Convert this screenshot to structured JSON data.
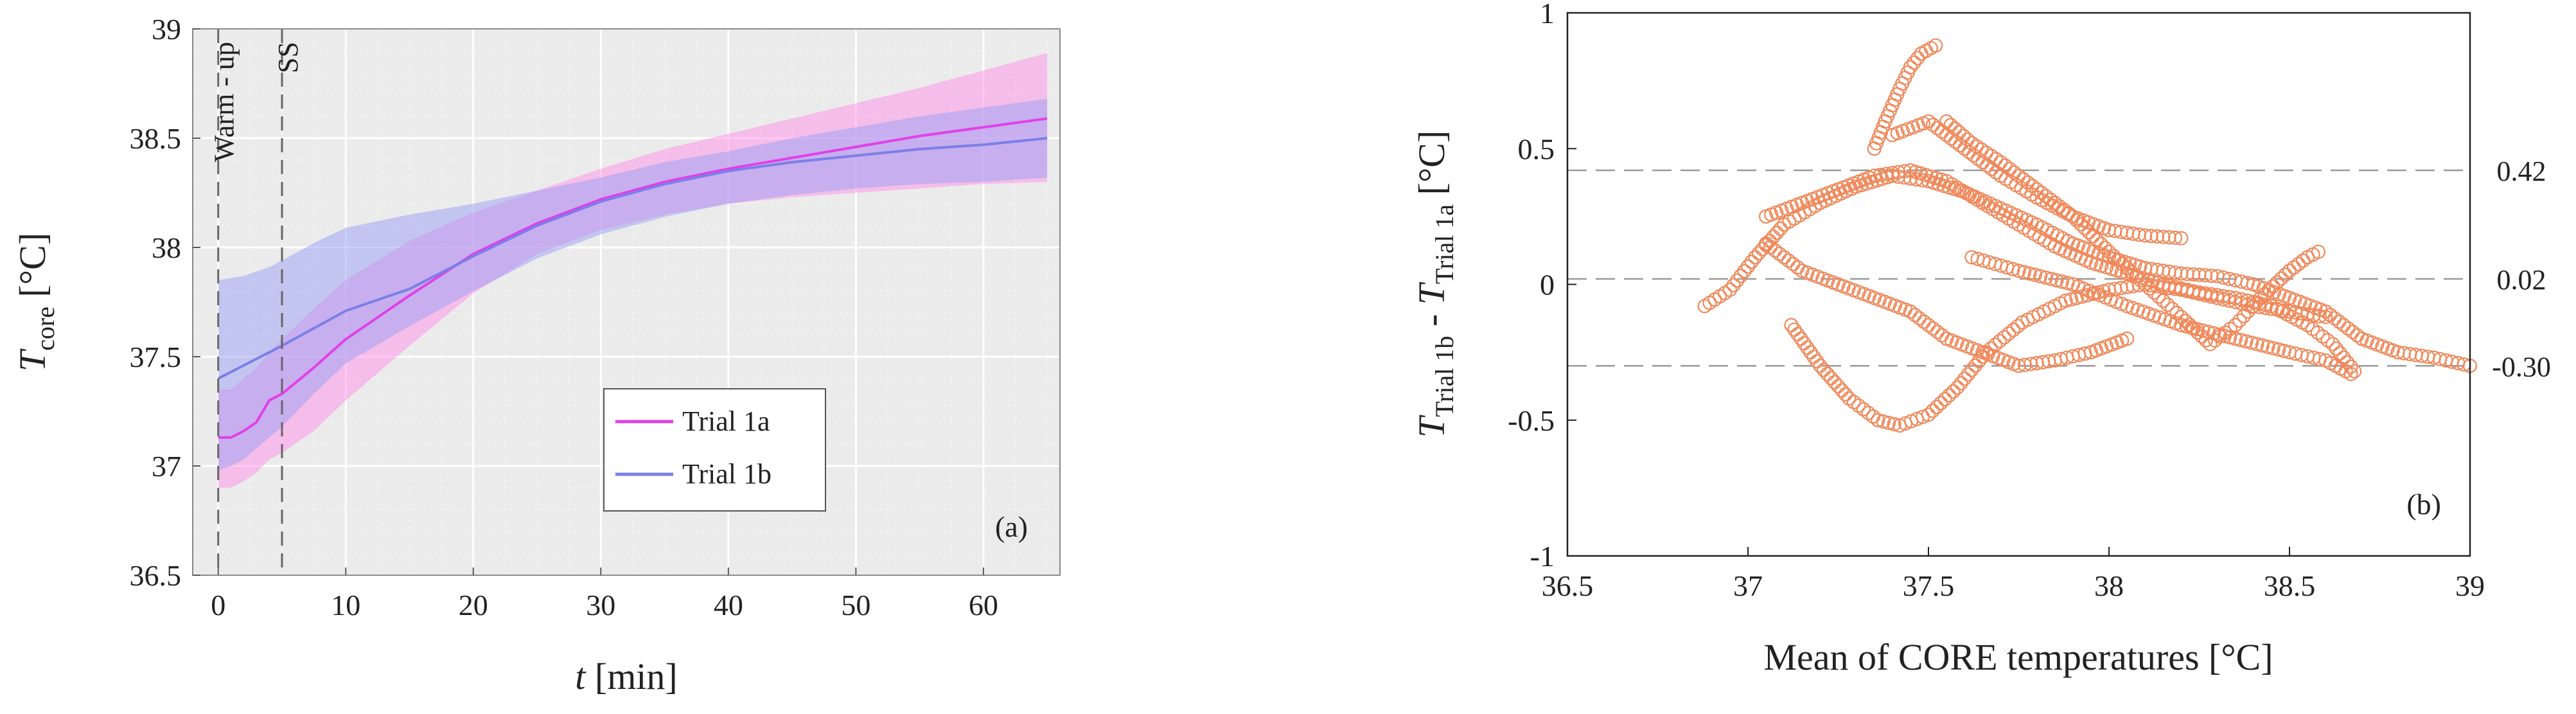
{
  "chart_data": [
    {
      "type": "line",
      "panel_label": "(a)",
      "xlabel": "t [min]",
      "xlabel_var": "t",
      "xlabel_unit": " [min]",
      "ylabel_var": "T",
      "ylabel_sub": "core",
      "ylabel_unit": " [°C]",
      "xlim": [
        -2,
        66
      ],
      "ylim": [
        36.5,
        39
      ],
      "x_ticks": [
        0,
        10,
        20,
        30,
        40,
        50,
        60
      ],
      "y_ticks": [
        36.5,
        37,
        37.5,
        38,
        38.5,
        39
      ],
      "x_tick_labels": [
        "0",
        "10",
        "20",
        "30",
        "40",
        "50",
        "60"
      ],
      "y_tick_labels": [
        "36.5",
        "37",
        "37.5",
        "38",
        "38.5",
        "39"
      ],
      "grid": true,
      "legend_position": "center-right",
      "annotations": [
        {
          "text": "Warm - up",
          "x": 0
        },
        {
          "text": "SS",
          "x": 5
        }
      ],
      "x": [
        0,
        1,
        2,
        3,
        4,
        5,
        7.5,
        10,
        15,
        20,
        25,
        30,
        35,
        40,
        45,
        50,
        55,
        60,
        65
      ],
      "series": [
        {
          "name": "Trial 1a",
          "color": "#e040e8",
          "band_color": "#ff8fe8",
          "mean": [
            37.13,
            37.13,
            37.16,
            37.2,
            37.3,
            37.33,
            37.45,
            37.58,
            37.78,
            37.97,
            38.11,
            38.22,
            38.3,
            38.36,
            38.41,
            38.46,
            38.51,
            38.55,
            38.59
          ],
          "lower": [
            36.9,
            36.9,
            36.93,
            36.97,
            37.03,
            37.06,
            37.16,
            37.3,
            37.55,
            37.79,
            37.97,
            38.08,
            38.15,
            38.2,
            38.23,
            38.25,
            38.27,
            38.29,
            38.3
          ],
          "upper": [
            37.35,
            37.35,
            37.4,
            37.45,
            37.52,
            37.58,
            37.72,
            37.85,
            38.03,
            38.16,
            38.26,
            38.36,
            38.45,
            38.52,
            38.59,
            38.66,
            38.73,
            38.81,
            38.89
          ]
        },
        {
          "name": "Trial 1b",
          "color": "#7b7fe8",
          "band_color": "#9aa0f4",
          "mean": [
            37.4,
            37.43,
            37.46,
            37.49,
            37.52,
            37.55,
            37.63,
            37.71,
            37.81,
            37.96,
            38.1,
            38.21,
            38.29,
            38.35,
            38.39,
            38.42,
            38.45,
            38.47,
            38.5
          ],
          "lower": [
            36.98,
            37.0,
            37.03,
            37.08,
            37.13,
            37.18,
            37.33,
            37.47,
            37.64,
            37.8,
            37.95,
            38.06,
            38.14,
            38.2,
            38.24,
            38.27,
            38.29,
            38.3,
            38.32
          ],
          "upper": [
            37.85,
            37.86,
            37.87,
            37.89,
            37.91,
            37.94,
            38.02,
            38.09,
            38.15,
            38.2,
            38.26,
            38.32,
            38.39,
            38.44,
            38.5,
            38.55,
            38.6,
            38.64,
            38.68
          ]
        }
      ]
    },
    {
      "type": "scatter",
      "panel_label": "(b)",
      "xlabel": "Mean of CORE temperatures [°C]",
      "ylabel_var": "T",
      "ylabel_sub1": "Trial 1b",
      "ylabel_mid": " - ",
      "ylabel_var2": "T",
      "ylabel_sub2": "Trial 1a",
      "ylabel_unit": " [°C]",
      "xlim": [
        36.5,
        39
      ],
      "ylim": [
        -1,
        1
      ],
      "x_ticks": [
        36.5,
        37,
        37.5,
        38,
        38.5,
        39
      ],
      "y_ticks": [
        -1,
        -0.5,
        0,
        0.5,
        1
      ],
      "x_tick_labels": [
        "36.5",
        "37",
        "37.5",
        "38",
        "38.5",
        "39"
      ],
      "y_tick_labels": [
        "-1",
        "-0.5",
        "0",
        "0.5",
        "1"
      ],
      "grid": false,
      "point_color": "#f0885a",
      "reference_lines": [
        {
          "y": 0.42,
          "label": "0.42"
        },
        {
          "y": 0.02,
          "label": "0.02"
        },
        {
          "y": -0.3,
          "label": "-0.30"
        }
      ],
      "clusters": [
        {
          "path": [
            [
              37.35,
              0.5
            ],
            [
              37.38,
              0.6
            ],
            [
              37.42,
              0.72
            ],
            [
              37.45,
              0.8
            ],
            [
              37.48,
              0.85
            ],
            [
              37.52,
              0.88
            ]
          ]
        },
        {
          "path": [
            [
              37.4,
              0.55
            ],
            [
              37.5,
              0.6
            ],
            [
              37.6,
              0.5
            ],
            [
              37.7,
              0.4
            ],
            [
              37.8,
              0.32
            ],
            [
              37.9,
              0.25
            ],
            [
              38.0,
              0.2
            ],
            [
              38.1,
              0.18
            ],
            [
              38.2,
              0.17
            ]
          ]
        },
        {
          "path": [
            [
              36.88,
              -0.08
            ],
            [
              36.95,
              -0.02
            ],
            [
              37.02,
              0.1
            ],
            [
              37.1,
              0.22
            ],
            [
              37.2,
              0.3
            ],
            [
              37.3,
              0.36
            ],
            [
              37.4,
              0.4
            ],
            [
              37.5,
              0.38
            ],
            [
              37.6,
              0.34
            ],
            [
              37.7,
              0.28
            ],
            [
              37.8,
              0.22
            ],
            [
              37.9,
              0.15
            ],
            [
              38.0,
              0.1
            ],
            [
              38.1,
              0.06
            ],
            [
              38.2,
              0.04
            ],
            [
              38.3,
              0.03
            ],
            [
              38.4,
              0.0
            ],
            [
              38.5,
              -0.05
            ],
            [
              38.6,
              -0.1
            ],
            [
              38.7,
              -0.2
            ],
            [
              38.8,
              -0.25
            ],
            [
              38.9,
              -0.27
            ],
            [
              39.0,
              -0.3
            ]
          ]
        },
        {
          "path": [
            [
              37.05,
              0.25
            ],
            [
              37.15,
              0.3
            ],
            [
              37.25,
              0.35
            ],
            [
              37.35,
              0.4
            ],
            [
              37.45,
              0.42
            ],
            [
              37.55,
              0.38
            ],
            [
              37.65,
              0.3
            ],
            [
              37.75,
              0.22
            ],
            [
              37.85,
              0.14
            ],
            [
              37.95,
              0.08
            ],
            [
              38.05,
              0.04
            ],
            [
              38.15,
              0.0
            ],
            [
              38.25,
              -0.03
            ],
            [
              38.35,
              -0.05
            ],
            [
              38.45,
              -0.08
            ],
            [
              38.55,
              -0.15
            ],
            [
              38.62,
              -0.22
            ],
            [
              38.68,
              -0.32
            ]
          ]
        },
        {
          "path": [
            [
              37.12,
              -0.15
            ],
            [
              37.2,
              -0.3
            ],
            [
              37.28,
              -0.42
            ],
            [
              37.36,
              -0.5
            ],
            [
              37.42,
              -0.52
            ],
            [
              37.5,
              -0.48
            ],
            [
              37.58,
              -0.38
            ],
            [
              37.66,
              -0.25
            ],
            [
              37.76,
              -0.14
            ],
            [
              37.88,
              -0.06
            ],
            [
              38.0,
              -0.02
            ],
            [
              38.1,
              0.0
            ],
            [
              38.2,
              -0.02
            ],
            [
              38.3,
              -0.05
            ],
            [
              38.4,
              -0.08
            ],
            [
              38.5,
              -0.1
            ],
            [
              38.6,
              -0.12
            ]
          ]
        },
        {
          "path": [
            [
              37.55,
              0.6
            ],
            [
              37.62,
              0.52
            ],
            [
              37.7,
              0.45
            ],
            [
              37.8,
              0.35
            ],
            [
              37.9,
              0.25
            ],
            [
              38.0,
              0.12
            ],
            [
              38.1,
              0.0
            ],
            [
              38.2,
              -0.12
            ],
            [
              38.28,
              -0.22
            ],
            [
              38.35,
              -0.15
            ],
            [
              38.42,
              -0.05
            ],
            [
              38.5,
              0.05
            ],
            [
              38.55,
              0.1
            ],
            [
              38.58,
              0.12
            ]
          ]
        },
        {
          "path": [
            [
              37.05,
              0.15
            ],
            [
              37.15,
              0.05
            ],
            [
              37.25,
              0.0
            ],
            [
              37.35,
              -0.05
            ],
            [
              37.45,
              -0.1
            ],
            [
              37.55,
              -0.2
            ],
            [
              37.65,
              -0.25
            ],
            [
              37.75,
              -0.3
            ],
            [
              37.85,
              -0.28
            ],
            [
              37.95,
              -0.25
            ],
            [
              38.05,
              -0.2
            ]
          ]
        },
        {
          "path": [
            [
              37.62,
              0.1
            ],
            [
              37.75,
              0.05
            ],
            [
              37.9,
              0.0
            ],
            [
              38.05,
              -0.08
            ],
            [
              38.2,
              -0.15
            ],
            [
              38.35,
              -0.2
            ],
            [
              38.5,
              -0.25
            ],
            [
              38.6,
              -0.28
            ],
            [
              38.67,
              -0.33
            ]
          ]
        }
      ]
    }
  ]
}
